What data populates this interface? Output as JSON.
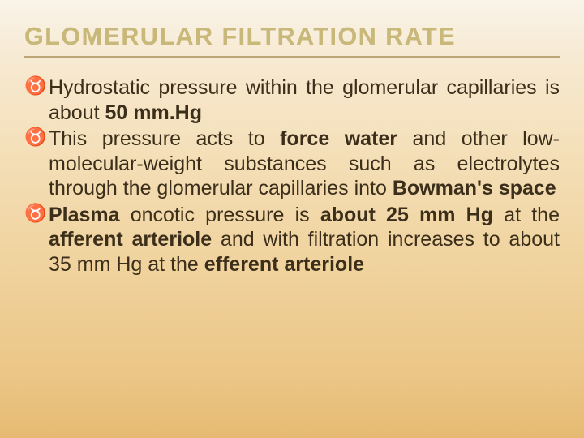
{
  "slide": {
    "title": "GLOMERULAR FILTRATION RATE",
    "background_gradient": [
      "#f9f3e8",
      "#f7e9d0",
      "#f4dfb8",
      "#f0d39e",
      "#ebc687",
      "#e6ba72"
    ],
    "title_color": "#c8b879",
    "title_fontsize": 30.5,
    "title_letter_spacing": 1.5,
    "underline_color": "rgba(140,110,40,0.55)",
    "body_color": "#3b2e1a",
    "body_fontsize": 25,
    "bullet_glyph": "♉",
    "items": [
      {
        "pre": "Hydrostatic pressure within the glomerular capillaries is about ",
        "b1": "50 mm.Hg",
        "post": ""
      },
      {
        "pre": "This pressure acts to ",
        "b1": "force water",
        "mid1": " and other low-molecular-weight substances such as electrolytes through the glomerular capillaries into ",
        "b2": "Bowman's space",
        "post": ""
      },
      {
        "pre": "",
        "b1": "Plasma",
        "mid1": " oncotic pressure is ",
        "b2": "about 25 mm Hg",
        "mid2": " at the ",
        "b3": "afferent arteriole",
        "mid3": " and with filtration increases to about 35 mm Hg at the ",
        "b4": "efferent arteriole",
        "post": ""
      }
    ]
  }
}
